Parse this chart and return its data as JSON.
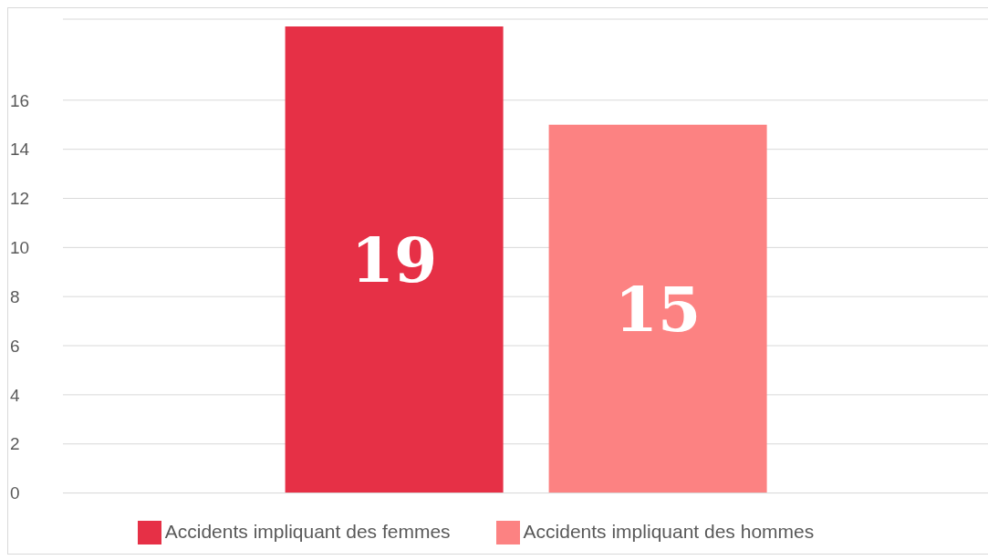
{
  "chart_data": {
    "type": "bar",
    "categories": [
      null
    ],
    "series": [
      {
        "name": "Accidents impliquant des femmes",
        "color": "#e63046",
        "values": [
          19
        ]
      },
      {
        "name": "Accidents impliquant des hommes",
        "color": "#fc8282",
        "values": [
          15
        ]
      }
    ],
    "ylim": [
      0,
      19.3
    ],
    "yticks": [
      0,
      2,
      4,
      6,
      8,
      10,
      12,
      14,
      16
    ],
    "grid": "y",
    "legend": "bottom",
    "data_labels": true
  }
}
